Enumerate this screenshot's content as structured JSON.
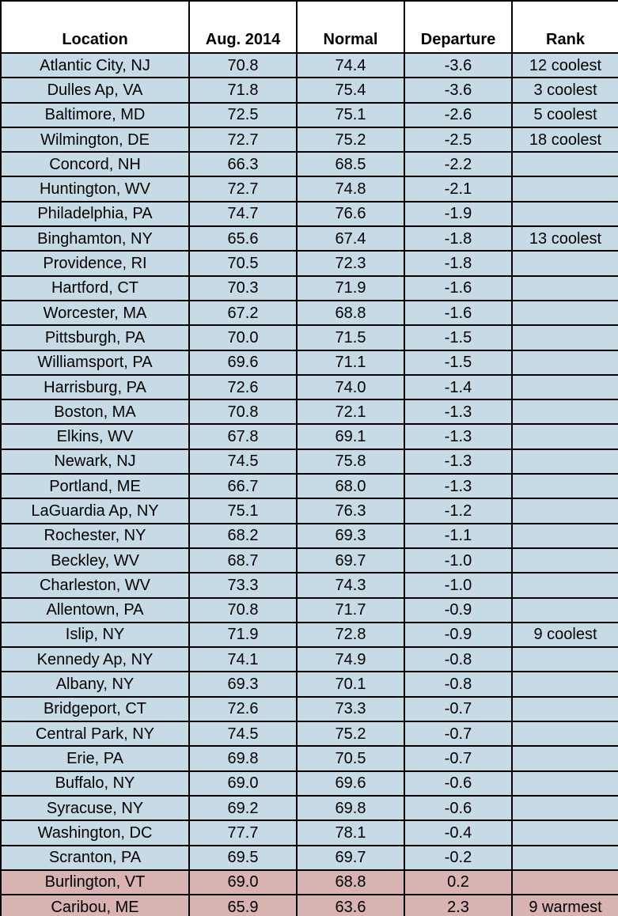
{
  "table": {
    "header": [
      "Location",
      "Aug. 2014",
      "Normal",
      "Departure",
      "Rank"
    ],
    "rows": [
      [
        "Atlantic City, NJ",
        "70.8",
        "74.4",
        "-3.6",
        "12 coolest"
      ],
      [
        "Dulles Ap, VA",
        "71.8",
        "75.4",
        "-3.6",
        "3 coolest"
      ],
      [
        "Baltimore, MD",
        "72.5",
        "75.1",
        "-2.6",
        "5 coolest"
      ],
      [
        "Wilmington, DE",
        "72.7",
        "75.2",
        "-2.5",
        "18 coolest"
      ],
      [
        "Concord, NH",
        "66.3",
        "68.5",
        "-2.2",
        null
      ],
      [
        "Huntington, WV",
        "72.7",
        "74.8",
        "-2.1",
        null
      ],
      [
        "Philadelphia, PA",
        "74.7",
        "76.6",
        "-1.9",
        null
      ],
      [
        "Binghamton, NY",
        "65.6",
        "67.4",
        "-1.8",
        "13 coolest"
      ],
      [
        "Providence, RI",
        "70.5",
        "72.3",
        "-1.8",
        null
      ],
      [
        "Hartford, CT",
        "70.3",
        "71.9",
        "-1.6",
        null
      ],
      [
        "Worcester, MA",
        "67.2",
        "68.8",
        "-1.6",
        null
      ],
      [
        "Pittsburgh, PA",
        "70.0",
        "71.5",
        "-1.5",
        null
      ],
      [
        "Williamsport, PA",
        "69.6",
        "71.1",
        "-1.5",
        null
      ],
      [
        "Harrisburg, PA",
        "72.6",
        "74.0",
        "-1.4",
        null
      ],
      [
        "Boston, MA",
        "70.8",
        "72.1",
        "-1.3",
        null
      ],
      [
        "Elkins, WV",
        "67.8",
        "69.1",
        "-1.3",
        null
      ],
      [
        "Newark, NJ",
        "74.5",
        "75.8",
        "-1.3",
        null
      ],
      [
        "Portland, ME",
        "66.7",
        "68.0",
        "-1.3",
        null
      ],
      [
        "LaGuardia Ap, NY",
        "75.1",
        "76.3",
        "-1.2",
        null
      ],
      [
        "Rochester, NY",
        "68.2",
        "69.3",
        "-1.1",
        null
      ],
      [
        "Beckley, WV",
        "68.7",
        "69.7",
        "-1.0",
        null
      ],
      [
        "Charleston, WV",
        "73.3",
        "74.3",
        "-1.0",
        null
      ],
      [
        "Allentown, PA",
        "70.8",
        "71.7",
        "-0.9",
        null
      ],
      [
        "Islip, NY",
        "71.9",
        "72.8",
        "-0.9",
        "9 coolest"
      ],
      [
        "Kennedy Ap, NY",
        "74.1",
        "74.9",
        "-0.8",
        null
      ],
      [
        "Albany, NY",
        "69.3",
        "70.1",
        "-0.8",
        null
      ],
      [
        "Bridgeport, CT",
        "72.6",
        "73.3",
        "-0.7",
        null
      ],
      [
        "Central Park, NY",
        "74.5",
        "75.2",
        "-0.7",
        null
      ],
      [
        "Erie, PA",
        "69.8",
        "70.5",
        "-0.7",
        null
      ],
      [
        "Buffalo, NY",
        "69.0",
        "69.6",
        "-0.6",
        null
      ],
      [
        "Syracuse, NY",
        "69.2",
        "69.8",
        "-0.6",
        null
      ],
      [
        "Washington, DC",
        "77.7",
        "78.1",
        "-0.4",
        null
      ],
      [
        "Scranton, PA",
        "69.5",
        "69.7",
        "-0.2",
        null
      ],
      [
        "Burlington, VT",
        "69.0",
        "68.8",
        "0.2",
        null
      ],
      [
        "Caribou, ME",
        "65.9",
        "63.6",
        "2.3",
        "9 warmest"
      ]
    ]
  }
}
